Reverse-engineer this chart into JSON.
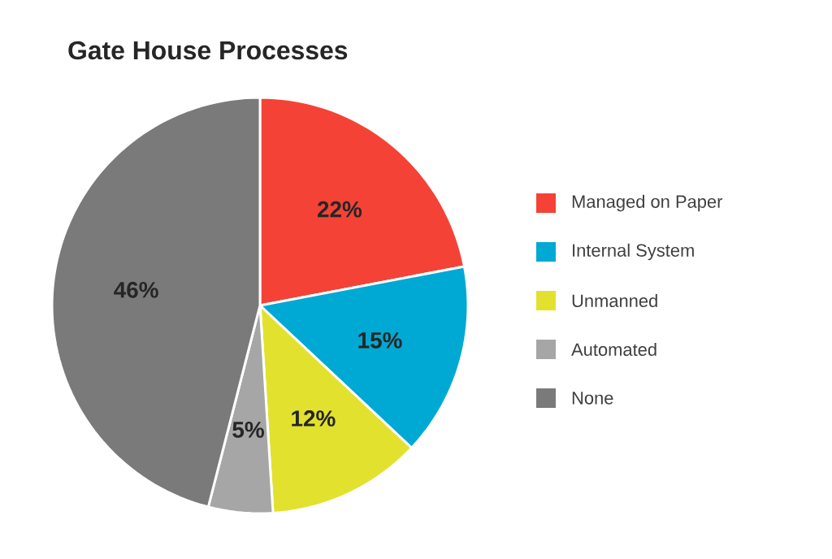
{
  "chart_data": {
    "type": "pie",
    "title": "Gate House Processes",
    "categories": [
      "Managed on Paper",
      "Internal System",
      "Unmanned",
      "Automated",
      "None"
    ],
    "values": [
      22,
      15,
      12,
      5,
      46
    ],
    "colors": [
      "#f44336",
      "#00a9d4",
      "#e2e22e",
      "#a6a6a6",
      "#7a7a7a"
    ],
    "value_labels": [
      "22%",
      "15%",
      "12%",
      "5%",
      "46%"
    ],
    "legend": "right"
  }
}
